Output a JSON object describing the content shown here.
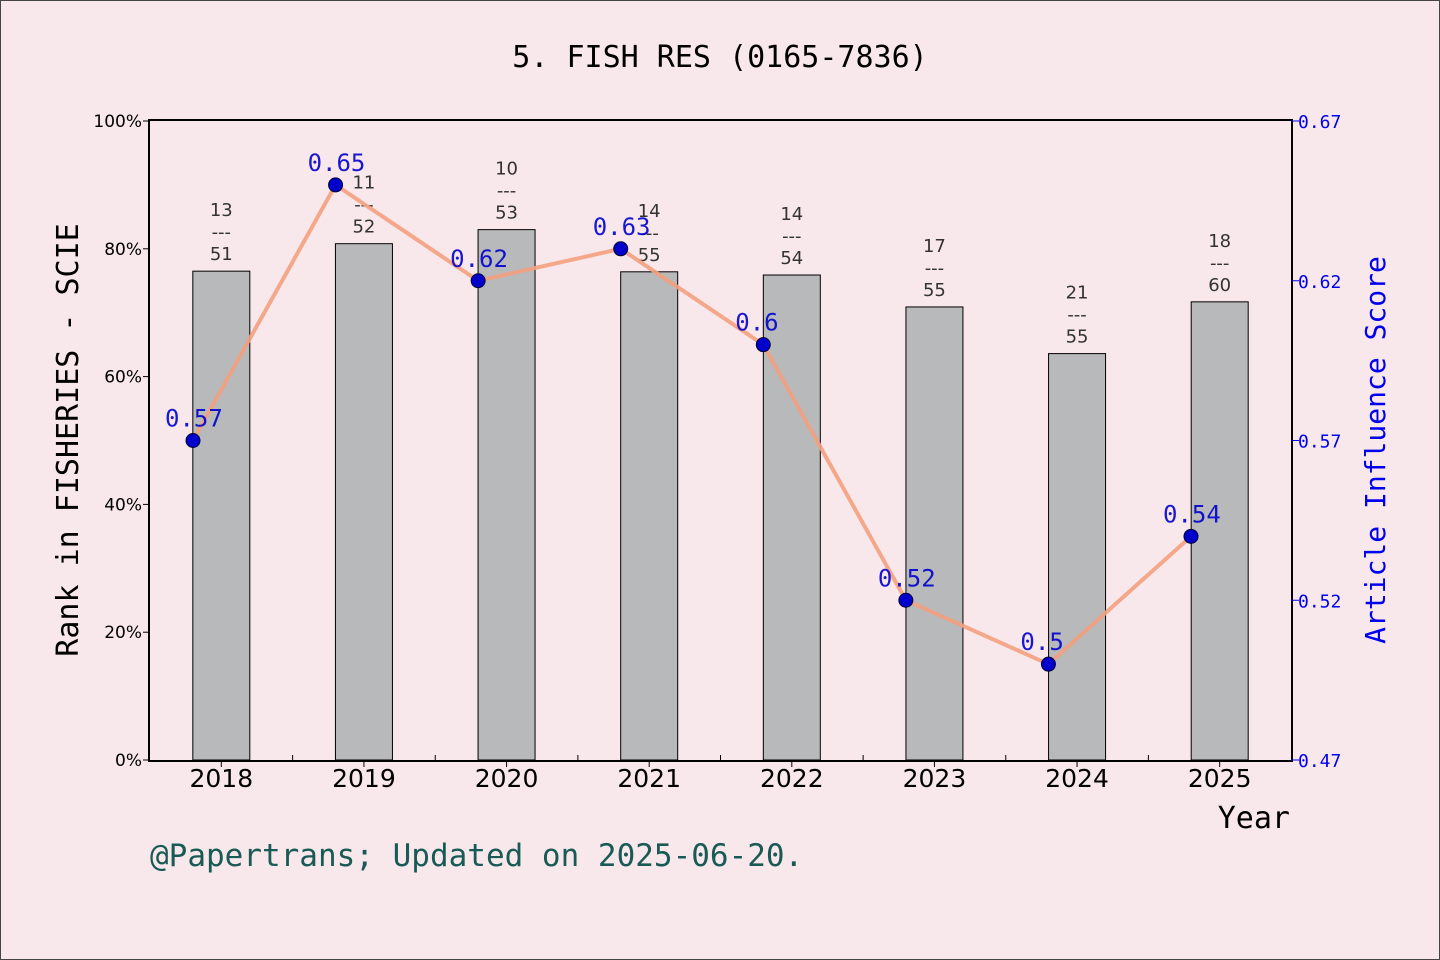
{
  "chart_data": {
    "type": "bar+line",
    "title": "5. FISH RES (0165-7836)",
    "xlabel": "Year",
    "ylabel": "Rank in FISHERIES - SCIE",
    "y2label": "Article Influence Score",
    "categories": [
      "2018",
      "2019",
      "2020",
      "2021",
      "2022",
      "2023",
      "2024",
      "2025"
    ],
    "bars": {
      "rank": [
        13,
        11,
        10,
        14,
        14,
        17,
        21,
        18
      ],
      "total": [
        51,
        52,
        53,
        55,
        54,
        55,
        55,
        60
      ],
      "fraction_separator": "---",
      "values_percent": [
        76.5,
        80.8,
        83.0,
        76.4,
        75.9,
        70.9,
        63.6,
        71.7
      ],
      "color": "#b8b9bb"
    },
    "line": {
      "values": [
        0.57,
        0.65,
        0.62,
        0.63,
        0.6,
        0.52,
        0.5,
        0.54
      ],
      "labels": [
        "0.57",
        "0.65",
        "0.62",
        "0.63",
        "0.6",
        "0.52",
        "0.5",
        "0.54"
      ],
      "color": "#f4a080",
      "marker_color": "#0000cc"
    },
    "ylim": [
      0,
      100
    ],
    "yticks": [
      "0%",
      "20%",
      "40%",
      "60%",
      "80%",
      "100%"
    ],
    "y2lim": [
      0.47,
      0.67
    ],
    "y2ticks": [
      "0.47",
      "0.52",
      "0.57",
      "0.62",
      "0.67"
    ],
    "grid": false
  },
  "footer": "@Papertrans; Updated on 2025-06-20."
}
